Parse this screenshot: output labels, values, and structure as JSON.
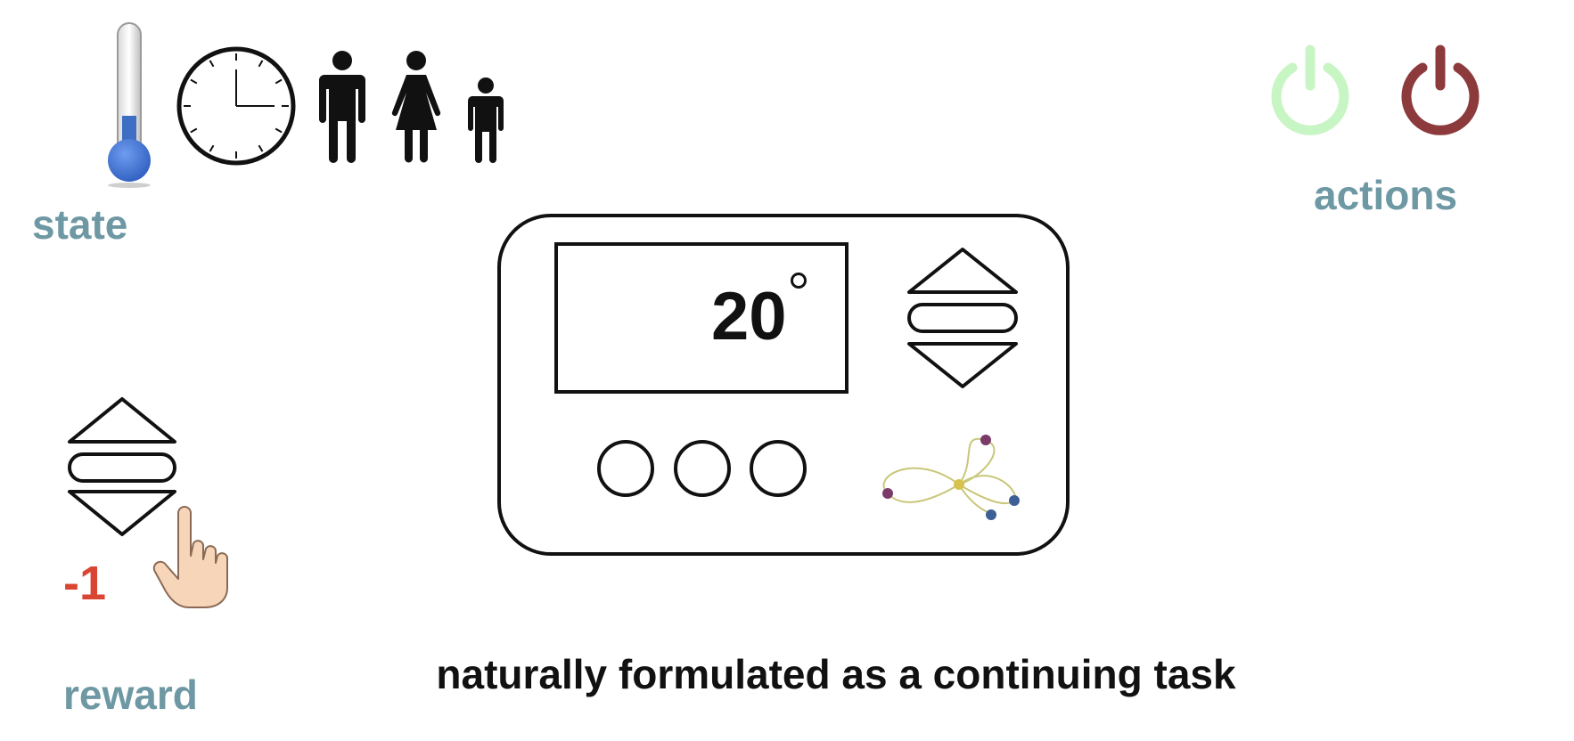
{
  "state": {
    "label": "state",
    "icons": [
      "thermometer-icon",
      "clock-icon",
      "man-icon",
      "woman-icon",
      "child-icon"
    ]
  },
  "actions": {
    "label": "actions",
    "icons": [
      "power-on-icon",
      "power-off-icon"
    ],
    "colors": {
      "on": "#c8f5c4",
      "off": "#8c3a3c"
    }
  },
  "thermostat": {
    "display_temperature": "20",
    "degree_symbol": "°",
    "buttons": [
      "round-button-1",
      "round-button-2",
      "round-button-3"
    ],
    "logo": "network-logo-icon"
  },
  "reward": {
    "value": "-1",
    "label": "reward",
    "icons": [
      "up-down-arrows-icon",
      "pointing-hand-icon"
    ],
    "color": "#d94532"
  },
  "caption": "naturally formulated as a continuing task",
  "colors": {
    "label": "#6e98a3",
    "thermometer": "#3e6fc4"
  }
}
